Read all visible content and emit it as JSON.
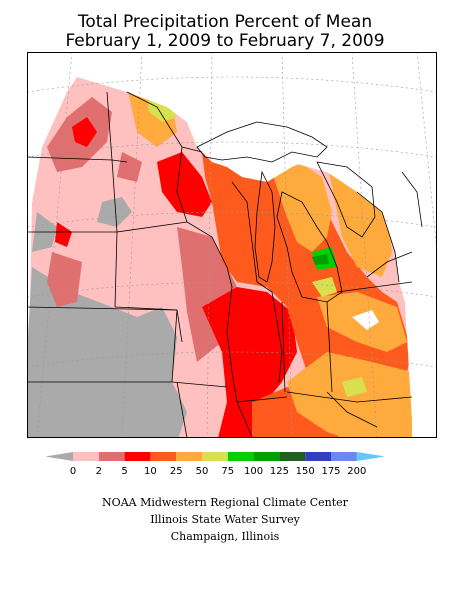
{
  "title_line1": "Total Precipitation Percent of Mean",
  "title_line2": "February 1, 2009 to February 7, 2009",
  "legend": {
    "tick_labels": [
      "0",
      "2",
      "5",
      "10",
      "25",
      "50",
      "75",
      "100",
      "125",
      "150",
      "175",
      "200"
    ],
    "colors": [
      "#aaaaaa",
      "#ffc0c0",
      "#e07070",
      "#ff0000",
      "#ff5a1e",
      "#ffaa3c",
      "#d8e050",
      "#00d000",
      "#00a000",
      "#206020",
      "#3040c0",
      "#6a88f0",
      "#62c8f8"
    ]
  },
  "credits": {
    "line1": "NOAA Midwestern Regional Climate Center",
    "line2": "Illinois State Water Survey",
    "line3": "Champaign, Illinois"
  },
  "map_colors": {
    "gray": "#aaaaaa",
    "pink": "#ffc0c0",
    "rose": "#e07070",
    "red": "#ff0000",
    "redorange": "#ff5a1e",
    "orange": "#ffaa3c",
    "yellowgreen": "#d8e050",
    "green": "#00d000",
    "darkgreen": "#00a000",
    "blue": "#3050d0",
    "white": "#ffffff"
  }
}
